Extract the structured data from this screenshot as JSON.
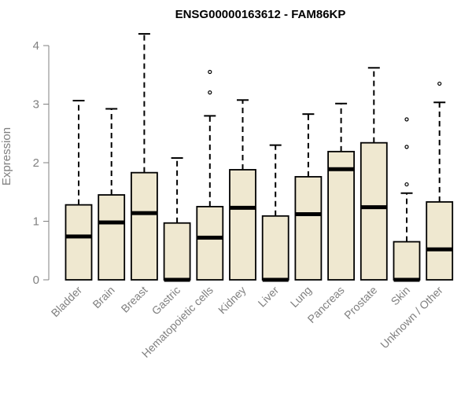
{
  "chart_data": {
    "type": "boxplot",
    "title": "ENSG00000163612 - FAM86KP",
    "xlabel": "",
    "ylabel": "Expression",
    "ylim": [
      0,
      4.2
    ],
    "yticks": [
      0,
      1,
      2,
      3,
      4
    ],
    "categories": [
      "Bladder",
      "Brain",
      "Breast",
      "Gastric",
      "Hematopoietic cells",
      "Kidney",
      "Liver",
      "Lung",
      "Pancreas",
      "Prostate",
      "Skin",
      "Unknown / Other"
    ],
    "boxes": [
      {
        "min": 0,
        "q1": 0,
        "median": 0.74,
        "q3": 1.28,
        "max": 3.06,
        "outliers": []
      },
      {
        "min": 0,
        "q1": 0,
        "median": 0.98,
        "q3": 1.45,
        "max": 2.92,
        "outliers": []
      },
      {
        "min": 0,
        "q1": 0,
        "median": 1.14,
        "q3": 1.83,
        "max": 4.2,
        "outliers": []
      },
      {
        "min": 0,
        "q1": 0,
        "median": 0.0,
        "q3": 0.97,
        "max": 2.08,
        "outliers": []
      },
      {
        "min": 0,
        "q1": 0,
        "median": 0.72,
        "q3": 1.25,
        "max": 2.8,
        "outliers": [
          3.2,
          3.55
        ]
      },
      {
        "min": 0,
        "q1": 0,
        "median": 1.23,
        "q3": 1.88,
        "max": 3.07,
        "outliers": []
      },
      {
        "min": 0,
        "q1": 0,
        "median": 0.0,
        "q3": 1.09,
        "max": 2.3,
        "outliers": []
      },
      {
        "min": 0,
        "q1": 0,
        "median": 1.12,
        "q3": 1.76,
        "max": 2.83,
        "outliers": []
      },
      {
        "min": 0,
        "q1": 0,
        "median": 1.89,
        "q3": 2.19,
        "max": 3.01,
        "outliers": []
      },
      {
        "min": 0,
        "q1": 0,
        "median": 1.24,
        "q3": 2.34,
        "max": 3.62,
        "outliers": []
      },
      {
        "min": 0,
        "q1": 0,
        "median": 0.0,
        "q3": 0.65,
        "max": 1.48,
        "outliers": [
          1.63,
          2.27,
          2.74
        ]
      },
      {
        "min": 0,
        "q1": 0,
        "median": 0.52,
        "q3": 1.33,
        "max": 3.03,
        "outliers": [
          3.35
        ]
      }
    ],
    "box_fill": "#efe8d0",
    "box_stroke": "#000000",
    "axis_color": "#808080",
    "grid": false,
    "legend": "none"
  }
}
